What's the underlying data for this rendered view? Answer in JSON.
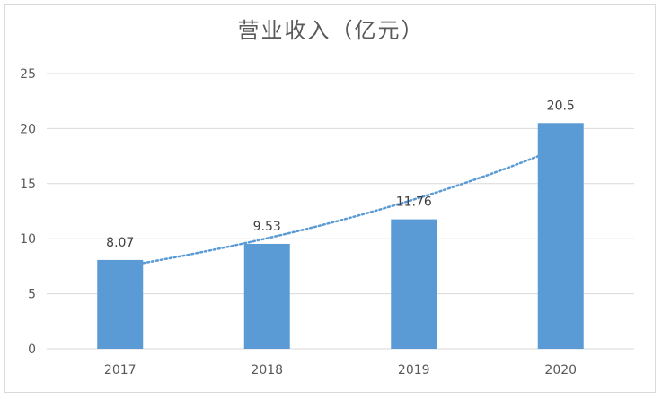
{
  "chart_data": {
    "type": "bar",
    "title": "营业收入（亿元）",
    "categories": [
      "2017",
      "2018",
      "2019",
      "2020"
    ],
    "values": [
      8.07,
      9.53,
      11.76,
      20.5
    ],
    "value_labels": [
      "8.07",
      "9.53",
      "11.76",
      "20.5"
    ],
    "ylim": [
      0,
      25
    ],
    "yticks": [
      0,
      5,
      10,
      15,
      20,
      25
    ],
    "grid": true,
    "trendline": {
      "type": "exponential",
      "style": "dotted"
    },
    "colors": {
      "bar": "#5b9bd5",
      "trendline": "#5b9bd5",
      "grid": "#d9d9d9",
      "text": "#595959"
    }
  }
}
